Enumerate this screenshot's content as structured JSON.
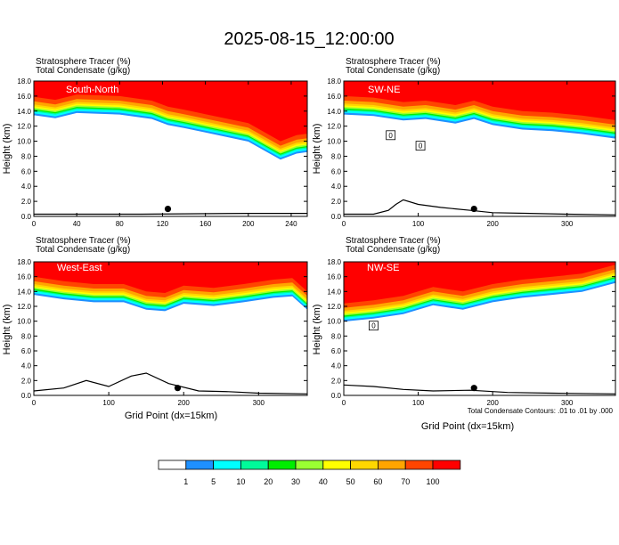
{
  "figure": {
    "title": "2025-08-15_12:00:00",
    "footnote": "Total Condensate Contours: .01 to .01 by .000",
    "xlabel": "Grid Point (dx=15km)"
  },
  "colorbar": {
    "levels": [
      "1",
      "5",
      "10",
      "20",
      "30",
      "40",
      "50",
      "60",
      "70",
      "100"
    ],
    "colors": [
      "#ffffff",
      "#1e90ff",
      "#00ffff",
      "#00fa9a",
      "#00ee00",
      "#9aff32",
      "#ffff00",
      "#ffd700",
      "#ffa500",
      "#ff4500",
      "#ff0000"
    ]
  },
  "chart_data": [
    {
      "type": "heatmap",
      "title": "South-North",
      "header_line1": "Stratosphere Tracer   (%)",
      "header_line2": "Total Condensate   (g/kg)",
      "ylabel": "Height (km)",
      "xlabel": "",
      "xlim": [
        0,
        255
      ],
      "ylim": [
        0,
        18
      ],
      "xticks": [
        "0",
        "40",
        "80",
        "120",
        "160",
        "200",
        "240"
      ],
      "xtick_values": [
        0,
        40,
        80,
        120,
        160,
        200,
        240
      ],
      "yticks": [
        "0.0",
        "2.0",
        "4.0",
        "6.0",
        "8.0",
        "10.0",
        "12.0",
        "14.0",
        "16.0",
        "18.0"
      ],
      "tracer_base_height": [
        [
          0,
          13.9
        ],
        [
          20,
          13.5
        ],
        [
          40,
          14.2
        ],
        [
          80,
          14.0
        ],
        [
          110,
          13.4
        ],
        [
          125,
          12.6
        ],
        [
          140,
          12.2
        ],
        [
          160,
          11.6
        ],
        [
          180,
          11.0
        ],
        [
          200,
          10.4
        ],
        [
          215,
          9.2
        ],
        [
          230,
          8.0
        ],
        [
          245,
          8.8
        ],
        [
          255,
          9.0
        ]
      ],
      "terrain": [
        [
          0,
          0.3
        ],
        [
          100,
          0.3
        ],
        [
          200,
          0.4
        ],
        [
          255,
          0.4
        ]
      ],
      "marker": [
        125,
        1.0
      ],
      "box_labels": []
    },
    {
      "type": "heatmap",
      "title": "SW-NE",
      "header_line1": "Stratosphere Tracer   (%)",
      "header_line2": "Total Condensate   (g/kg)",
      "ylabel": "Height (km)",
      "xlabel": "",
      "xlim": [
        0,
        365
      ],
      "ylim": [
        0,
        18
      ],
      "xticks": [
        "0",
        "100",
        "200",
        "300"
      ],
      "xtick_values": [
        0,
        100,
        200,
        300
      ],
      "yticks": [
        "0.0",
        "2.0",
        "4.0",
        "6.0",
        "8.0",
        "10.0",
        "12.0",
        "14.0",
        "16.0",
        "18.0"
      ],
      "tracer_base_height": [
        [
          0,
          14.0
        ],
        [
          40,
          13.8
        ],
        [
          80,
          13.2
        ],
        [
          110,
          13.4
        ],
        [
          150,
          12.8
        ],
        [
          175,
          13.4
        ],
        [
          200,
          12.6
        ],
        [
          240,
          12.0
        ],
        [
          280,
          11.8
        ],
        [
          320,
          11.4
        ],
        [
          365,
          10.8
        ]
      ],
      "terrain": [
        [
          0,
          0.3
        ],
        [
          40,
          0.3
        ],
        [
          60,
          0.8
        ],
        [
          70,
          1.6
        ],
        [
          80,
          2.2
        ],
        [
          100,
          1.6
        ],
        [
          130,
          1.2
        ],
        [
          170,
          0.8
        ],
        [
          200,
          0.5
        ],
        [
          250,
          0.4
        ],
        [
          300,
          0.3
        ],
        [
          365,
          0.2
        ]
      ],
      "marker": [
        175,
        1.0
      ],
      "box_labels": [
        {
          "x": 63,
          "y": 10.8,
          "text": "0"
        },
        {
          "x": 103,
          "y": 9.4,
          "text": "0"
        }
      ]
    },
    {
      "type": "heatmap",
      "title": "West-East",
      "header_line1": "Stratosphere Tracer   (%)",
      "header_line2": "Total Condensate   (g/kg)",
      "ylabel": "Height (km)",
      "xlabel": "Grid Point (dx=15km)",
      "xlim": [
        0,
        365
      ],
      "ylim": [
        0,
        18
      ],
      "xticks": [
        "0",
        "100",
        "200",
        "300"
      ],
      "xtick_values": [
        0,
        100,
        200,
        300
      ],
      "yticks": [
        "0.0",
        "2.0",
        "4.0",
        "6.0",
        "8.0",
        "10.0",
        "12.0",
        "14.0",
        "16.0",
        "18.0"
      ],
      "tracer_base_height": [
        [
          0,
          14.0
        ],
        [
          40,
          13.4
        ],
        [
          80,
          13.0
        ],
        [
          120,
          13.0
        ],
        [
          150,
          12.0
        ],
        [
          175,
          11.8
        ],
        [
          200,
          12.8
        ],
        [
          240,
          12.5
        ],
        [
          280,
          13.0
        ],
        [
          320,
          13.6
        ],
        [
          345,
          13.8
        ],
        [
          365,
          12.0
        ]
      ],
      "terrain": [
        [
          0,
          0.6
        ],
        [
          40,
          1.0
        ],
        [
          70,
          2.0
        ],
        [
          100,
          1.2
        ],
        [
          130,
          2.6
        ],
        [
          150,
          3.0
        ],
        [
          180,
          1.6
        ],
        [
          220,
          0.6
        ],
        [
          260,
          0.5
        ],
        [
          300,
          0.3
        ],
        [
          365,
          0.2
        ]
      ],
      "marker": [
        192,
        1.0
      ],
      "box_labels": []
    },
    {
      "type": "heatmap",
      "title": "NW-SE",
      "header_line1": "Stratosphere Tracer   (%)",
      "header_line2": "Total Condensate   (g/kg)",
      "ylabel": "Height (km)",
      "xlabel": "Grid Point (dx=15km)",
      "xlim": [
        0,
        365
      ],
      "ylim": [
        0,
        18
      ],
      "xticks": [
        "0",
        "100",
        "200",
        "300"
      ],
      "xtick_values": [
        0,
        100,
        200,
        300
      ],
      "yticks": [
        "0.0",
        "2.0",
        "4.0",
        "6.0",
        "8.0",
        "10.0",
        "12.0",
        "14.0",
        "16.0",
        "18.0"
      ],
      "tracer_base_height": [
        [
          0,
          10.4
        ],
        [
          40,
          10.8
        ],
        [
          80,
          11.4
        ],
        [
          120,
          12.6
        ],
        [
          160,
          12.0
        ],
        [
          200,
          13.0
        ],
        [
          240,
          13.6
        ],
        [
          280,
          14.0
        ],
        [
          320,
          14.4
        ],
        [
          365,
          15.6
        ]
      ],
      "terrain": [
        [
          0,
          1.4
        ],
        [
          40,
          1.2
        ],
        [
          80,
          0.8
        ],
        [
          120,
          0.6
        ],
        [
          170,
          0.7
        ],
        [
          220,
          0.4
        ],
        [
          280,
          0.3
        ],
        [
          365,
          0.2
        ]
      ],
      "marker": [
        175,
        1.0
      ],
      "box_labels": [
        {
          "x": 40,
          "y": 9.4,
          "text": "0"
        }
      ]
    }
  ]
}
